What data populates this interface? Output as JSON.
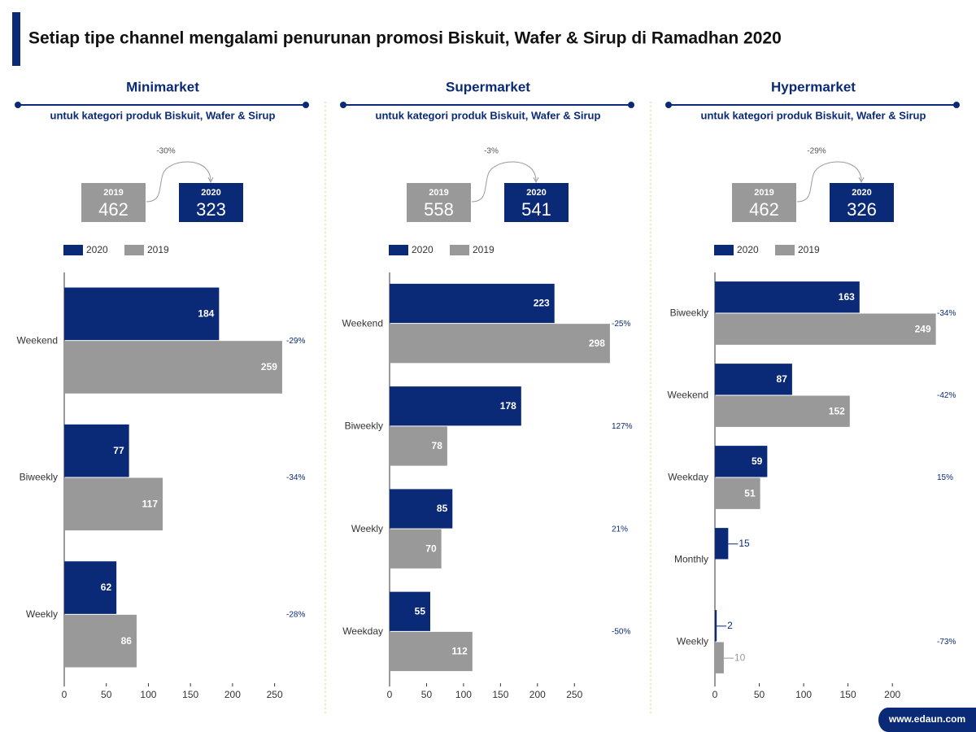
{
  "title": "Setiap tipe channel mengalami penurunan promosi Biskuit, Wafer & Sirup di Ramadhan 2020",
  "footer": "www.edaun.com",
  "chart_data": [
    {
      "type": "bar",
      "orientation": "horizontal",
      "title": "Minimarket",
      "subtitle": "untuk kategori produk Biskuit, Wafer & Sirup",
      "summary": [
        {
          "label": "2019",
          "value": 462
        },
        {
          "label": "2020",
          "value": 323
        }
      ],
      "summary_change": "-30%",
      "categories": [
        "Weekend",
        "Biweekly",
        "Weekly"
      ],
      "series": [
        {
          "name": "2020",
          "color": "#0a2a78",
          "values": [
            184,
            77,
            62
          ]
        },
        {
          "name": "2019",
          "color": "#999999",
          "values": [
            259,
            117,
            86
          ]
        }
      ],
      "annotations": [
        "-29%",
        "-34%",
        "-28%"
      ],
      "xlim": [
        0,
        290
      ],
      "xticks": [
        0,
        50,
        100,
        150,
        200,
        250
      ]
    },
    {
      "type": "bar",
      "orientation": "horizontal",
      "title": "Supermarket",
      "subtitle": "untuk kategori produk Biskuit, Wafer & Sirup",
      "summary": [
        {
          "label": "2019",
          "value": 558
        },
        {
          "label": "2020",
          "value": 541
        }
      ],
      "summary_change": "-3%",
      "categories": [
        "Weekend",
        "Biweekly",
        "Weekly",
        "Weekday"
      ],
      "series": [
        {
          "name": "2020",
          "color": "#0a2a78",
          "values": [
            223,
            178,
            85,
            55
          ]
        },
        {
          "name": "2019",
          "color": "#999999",
          "values": [
            298,
            78,
            70,
            112
          ]
        }
      ],
      "annotations": [
        "-25%",
        "127%",
        "21%",
        "-50%"
      ],
      "xlim": [
        0,
        330
      ],
      "xticks": [
        0,
        50,
        100,
        150,
        200,
        250
      ]
    },
    {
      "type": "bar",
      "orientation": "horizontal",
      "title": "Hypermarket",
      "subtitle": "untuk kategori produk Biskuit, Wafer & Sirup",
      "summary": [
        {
          "label": "2019",
          "value": 462
        },
        {
          "label": "2020",
          "value": 326
        }
      ],
      "summary_change": "-29%",
      "categories": [
        "Biweekly",
        "Weekend",
        "Weekday",
        "Monthly",
        "Weekly"
      ],
      "series": [
        {
          "name": "2020",
          "color": "#0a2a78",
          "values": [
            163,
            87,
            59,
            15,
            2
          ]
        },
        {
          "name": "2019",
          "color": "#999999",
          "values": [
            249,
            152,
            51,
            null,
            10
          ]
        }
      ],
      "annotations": [
        "-34%",
        "-42%",
        "15%",
        null,
        "-73%"
      ],
      "xlim": [
        0,
        275
      ],
      "xticks": [
        0,
        50,
        100,
        150,
        200
      ]
    }
  ]
}
